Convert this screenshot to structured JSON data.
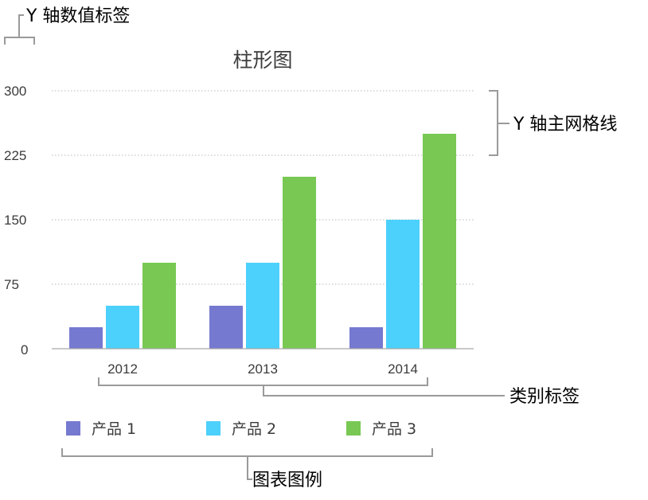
{
  "chart_data": {
    "type": "bar",
    "title": "柱形图",
    "categories": [
      "2012",
      "2013",
      "2014"
    ],
    "series": [
      {
        "name": "产品 1",
        "values": [
          25,
          50,
          25
        ],
        "color": "#7579d0"
      },
      {
        "name": "产品 2",
        "values": [
          50,
          100,
          150
        ],
        "color": "#4cd0fc"
      },
      {
        "name": "产品 3",
        "values": [
          100,
          200,
          250
        ],
        "color": "#78c853"
      }
    ],
    "ylim": [
      0,
      300
    ],
    "yticks": [
      "0",
      "75",
      "150",
      "225",
      "300"
    ],
    "grid": true,
    "legend_position": "bottom"
  },
  "annotations": {
    "y_axis_value_labels": "Y 轴数值标签",
    "y_axis_major_gridlines": "Y 轴主网格线",
    "category_labels": "类别标签",
    "chart_legend": "图表图例"
  }
}
